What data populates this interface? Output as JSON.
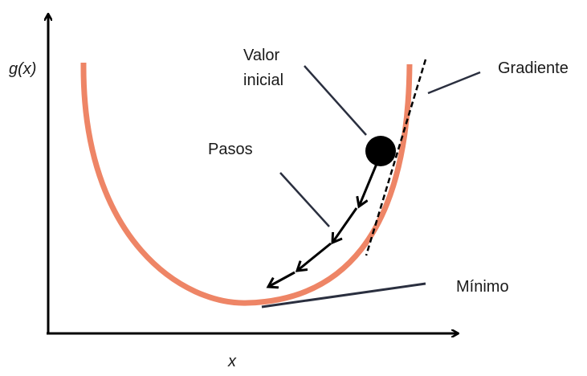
{
  "labels": {
    "y_axis": "g(x)",
    "x_axis": "x",
    "initial_value_line1": "Valor",
    "initial_value_line2": "inicial",
    "steps": "Pasos",
    "gradient": "Gradiente",
    "minimum": "Mínimo"
  },
  "colors": {
    "curve": "#ee8566",
    "axes": "#000000",
    "pointer_lines": "#2a2f3f",
    "ball": "#000000",
    "arrows": "#000000",
    "tangent": "#000000"
  }
}
